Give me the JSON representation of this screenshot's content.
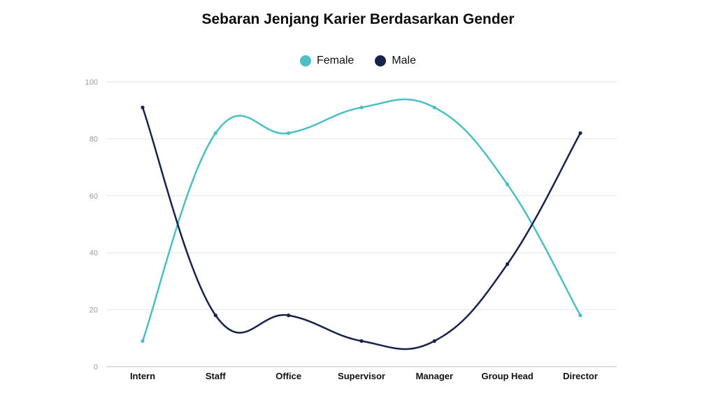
{
  "chart_data": {
    "type": "line",
    "title": "Sebaran Jenjang Karier Berdasarkan Gender",
    "categories": [
      "Intern",
      "Staff",
      "Office",
      "Supervisor",
      "Manager",
      "Group Head",
      "Director"
    ],
    "series": [
      {
        "name": "Female",
        "color": "#4bbfc4",
        "values": [
          9,
          82,
          82,
          91,
          91,
          64,
          18
        ]
      },
      {
        "name": "Male",
        "color": "#17234a",
        "values": [
          91,
          18,
          18,
          9,
          9,
          36,
          82
        ]
      }
    ],
    "ylim": [
      0,
      100
    ],
    "yticks": [
      0,
      20,
      40,
      60,
      80,
      100
    ],
    "xlabel": "",
    "ylabel": "",
    "grid": true,
    "legend": "top-center",
    "smooth": true
  }
}
